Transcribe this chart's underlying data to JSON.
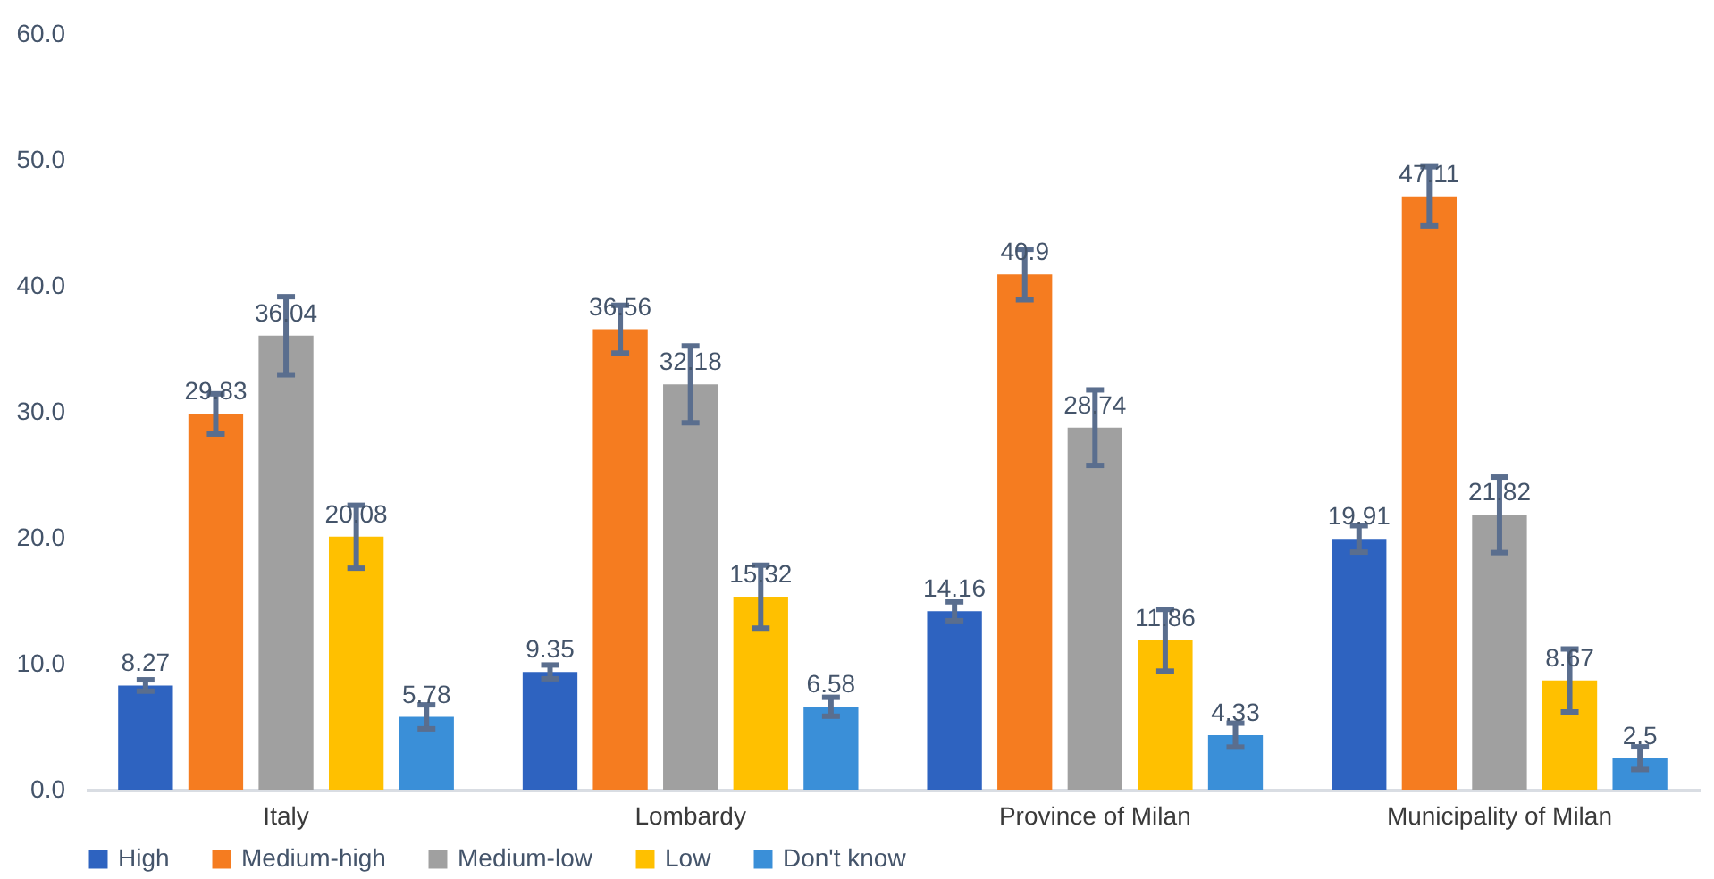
{
  "chart_data": {
    "type": "bar",
    "categories": [
      "Italy",
      "Lombardy",
      "Province of Milan",
      "Municipality of Milan"
    ],
    "series": [
      {
        "name": "High",
        "color": "#2e63c0",
        "values": [
          8.27,
          9.35,
          14.16,
          19.91
        ],
        "errors": [
          0.45,
          0.55,
          0.75,
          1.05
        ]
      },
      {
        "name": "Medium-high",
        "color": "#f57c20",
        "values": [
          29.83,
          36.56,
          40.9,
          47.11
        ],
        "errors": [
          1.6,
          1.9,
          2.0,
          2.35
        ]
      },
      {
        "name": "Medium-low",
        "color": "#a0a0a0",
        "values": [
          36.04,
          32.18,
          28.74,
          21.82
        ],
        "errors": [
          3.1,
          3.05,
          3.0,
          3.0
        ]
      },
      {
        "name": "Low",
        "color": "#ffc000",
        "values": [
          20.08,
          15.32,
          11.86,
          8.67
        ],
        "errors": [
          2.5,
          2.5,
          2.45,
          2.5
        ]
      },
      {
        "name": "Don't know",
        "color": "#3a8fd8",
        "values": [
          5.78,
          6.58,
          4.33,
          2.5
        ],
        "errors": [
          0.95,
          0.75,
          0.95,
          0.9
        ]
      }
    ],
    "ylim": [
      0,
      60
    ],
    "yticks": [
      {
        "value": 0,
        "label": "0.0"
      },
      {
        "value": 10,
        "label": "10.0"
      },
      {
        "value": 20,
        "label": "20.0"
      },
      {
        "value": 30,
        "label": "30.0"
      },
      {
        "value": 40,
        "label": "40.0"
      },
      {
        "value": 50,
        "label": "50.0"
      },
      {
        "value": 60,
        "label": "60.0"
      }
    ],
    "data_labels": true,
    "grid": false,
    "legend": "bottom"
  }
}
